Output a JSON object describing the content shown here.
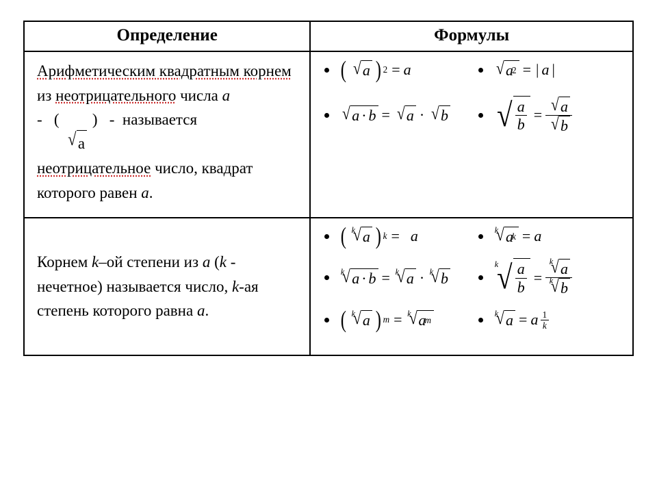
{
  "table": {
    "header": {
      "definition": "Определение",
      "formulas": "Формулы"
    },
    "row1": {
      "def_html": "<span class='u'>Арифметическим квадратным корнем</span> из <span class='u'>неотрицательного</span> числа <span class='it'>a</span><br>-&nbsp;&nbsp; ( <span class='sqrt-inline'><span class='sqrt'><span class='deg'></span><span class='radical'>√</span><span class='radicand'>a</span></span></span> )&nbsp;&nbsp; -&nbsp; называется<br><span class='u'>неотрицательное</span> число, квадрат которого равен <span class='it'>a</span>.",
      "formulas": [
        {
          "id": "sq-sqrt-a-eq-a",
          "desc": "(√a)² = a"
        },
        {
          "id": "sqrt-a2-eq-absa",
          "desc": "√(a²) = |a|"
        },
        {
          "id": "sqrt-ab",
          "desc": "√(a·b) = √a · √b"
        },
        {
          "id": "sqrt-a-over-b",
          "desc": "√(a/b) = √a / √b"
        }
      ]
    },
    "row2": {
      "def_html": "Корнем <span class='it'>k</span>–ой степени из <span class='it'>a</span> (<span class='it'>k</span> - нечетное) называется число, <span class='it'>k</span>-ая степень которого равна <span class='it'>a</span>.",
      "formulas": [
        {
          "id": "kroot-a-pow-k-eq-a",
          "desc": "(ᵏ√a)ᵏ = a"
        },
        {
          "id": "kroot-ak-eq-a",
          "desc": "ᵏ√(aᵏ) = a"
        },
        {
          "id": "kroot-ab",
          "desc": "ᵏ√(a·b) = ᵏ√a · ᵏ√b"
        },
        {
          "id": "kroot-a-over-b",
          "desc": "ᵏ√(a/b) = ᵏ√a / ᵏ√b"
        },
        {
          "id": "kroot-a-m",
          "desc": "(ᵏ√a)ᵐ = ᵏ√(aᵐ)"
        },
        {
          "id": "kroot-a-eq-a1k",
          "desc": "ᵏ√a = a^(1/k)"
        }
      ]
    }
  },
  "style": {
    "font_family": "Times New Roman",
    "header_fontsize_pt": 19,
    "body_fontsize_pt": 17,
    "formula_fontsize_pt": 16,
    "border_color": "#000000",
    "background_color": "#ffffff",
    "dotted_underline_color": "#cc3333",
    "column_widths_pct": [
      47,
      53
    ]
  }
}
